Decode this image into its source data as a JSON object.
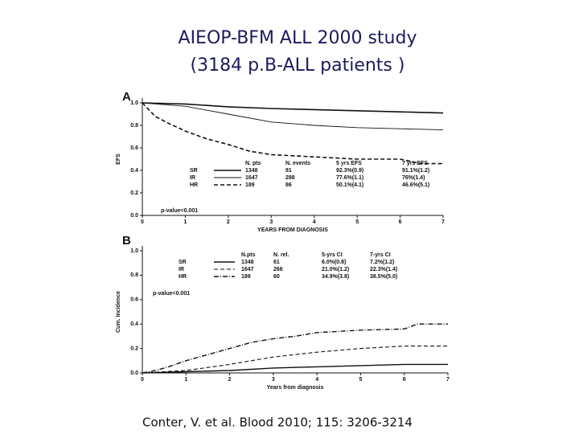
{
  "title": "AIEOP-BFM  ALL 2000 study",
  "subtitle": "(3184 p.B-ALL patients )",
  "citation": "Conter, V. et al. Blood 2010; 115: 3206-3214",
  "chart_data": [
    {
      "type": "line",
      "panel_label": "A",
      "ylabel": "EFS",
      "xlabel": "YEARS FROM DIAGNOSIS",
      "xlim": [
        0,
        7
      ],
      "xticks": [
        0,
        1,
        2,
        3,
        4,
        5,
        6,
        7
      ],
      "ylim": [
        0,
        1
      ],
      "yticks": [
        {
          "value": 0,
          "label": "0.0"
        },
        {
          "value": 0.2,
          "label": "0.2"
        },
        {
          "value": 0.4,
          "label": "0.4"
        },
        {
          "value": 0.6,
          "label": "0.6"
        },
        {
          "value": 0.8,
          "label": "0.8"
        },
        {
          "value": 1,
          "label": "1.0"
        }
      ],
      "annotation": "p-value<0.001",
      "series": [
        {
          "name": "SR",
          "color": "#111111",
          "dash": "none",
          "width": 1.6,
          "x": [
            0,
            1,
            2,
            3,
            4,
            5,
            6,
            7
          ],
          "values": [
            1,
            0.99,
            0.965,
            0.95,
            0.94,
            0.93,
            0.92,
            0.91
          ]
        },
        {
          "name": "IR",
          "color": "#111111",
          "dash": "none",
          "width": 0.9,
          "x": [
            0,
            1,
            2,
            3,
            4,
            5,
            6,
            7
          ],
          "values": [
            1,
            0.97,
            0.9,
            0.83,
            0.8,
            0.78,
            0.77,
            0.76
          ]
        },
        {
          "name": "HR",
          "color": "#111111",
          "dash": "5,3",
          "width": 1.6,
          "x": [
            0,
            0.3,
            0.6,
            1,
            1.5,
            2,
            2.5,
            3,
            4,
            5,
            6,
            6.5,
            7
          ],
          "values": [
            1,
            0.88,
            0.82,
            0.75,
            0.68,
            0.63,
            0.57,
            0.54,
            0.52,
            0.5,
            0.5,
            0.46,
            0.46
          ]
        }
      ],
      "legend_table": {
        "columns": [
          "N. pts",
          "N. events",
          "5 yrs EFS",
          "7 yrs EFS"
        ],
        "rows": [
          [
            "SR",
            1348,
            81,
            "92.3%(0.9)",
            "91.1%(1.2)"
          ],
          [
            "IR",
            1647,
            288,
            "77.6%(1.1)",
            "76%(1.4)"
          ],
          [
            "HR",
            189,
            86,
            "50.1%(4.1)",
            "46.6%(5.1)"
          ]
        ]
      }
    },
    {
      "type": "line",
      "panel_label": "B",
      "ylabel": "Cum. Incidence",
      "xlabel": "Years from diagnosis",
      "xlim": [
        0,
        7
      ],
      "xticks": [
        0,
        1,
        2,
        3,
        4,
        5,
        6,
        7
      ],
      "ylim": [
        0,
        1
      ],
      "yticks": [
        {
          "value": 0,
          "label": "0.0"
        },
        {
          "value": 0.2,
          "label": "0.2"
        },
        {
          "value": 0.4,
          "label": "0.4"
        },
        {
          "value": 0.6,
          "label": "0.6"
        },
        {
          "value": 0.8,
          "label": "0.8"
        },
        {
          "value": 1,
          "label": "1.0"
        }
      ],
      "annotation": "p-value<0.001",
      "series": [
        {
          "name": "SR",
          "color": "#111111",
          "dash": "none",
          "width": 1.4,
          "x": [
            0,
            1,
            2,
            3,
            4,
            5,
            6,
            7
          ],
          "values": [
            0,
            0.01,
            0.02,
            0.04,
            0.05,
            0.06,
            0.07,
            0.07
          ]
        },
        {
          "name": "IR",
          "color": "#111111",
          "dash": "5,3",
          "width": 1.1,
          "x": [
            0,
            1,
            2,
            3,
            4,
            5,
            6,
            7
          ],
          "values": [
            0,
            0.02,
            0.07,
            0.13,
            0.17,
            0.2,
            0.22,
            0.22
          ]
        },
        {
          "name": "HR",
          "color": "#111111",
          "dash": "6,2,1,2",
          "width": 1.4,
          "x": [
            0,
            0.3,
            0.6,
            1,
            1.5,
            2,
            2.5,
            3,
            3.5,
            4,
            5,
            6,
            6.3,
            7
          ],
          "values": [
            0,
            0.02,
            0.05,
            0.1,
            0.15,
            0.2,
            0.25,
            0.28,
            0.3,
            0.33,
            0.35,
            0.36,
            0.4,
            0.4
          ]
        }
      ],
      "legend_table": {
        "columns": [
          "N.pts",
          "N. rel.",
          "5-yrs CI",
          "7-yrs CI"
        ],
        "rows": [
          [
            "SR",
            1348,
            61,
            "6.0%(0.8)",
            "7.2%(1.2)"
          ],
          [
            "IR",
            1647,
            266,
            "21.0%(1.2)",
            "22.3%(1.4)"
          ],
          [
            "HR",
            189,
            60,
            "34.9%(3.8)",
            "38.5%(5.0)"
          ]
        ]
      }
    }
  ]
}
